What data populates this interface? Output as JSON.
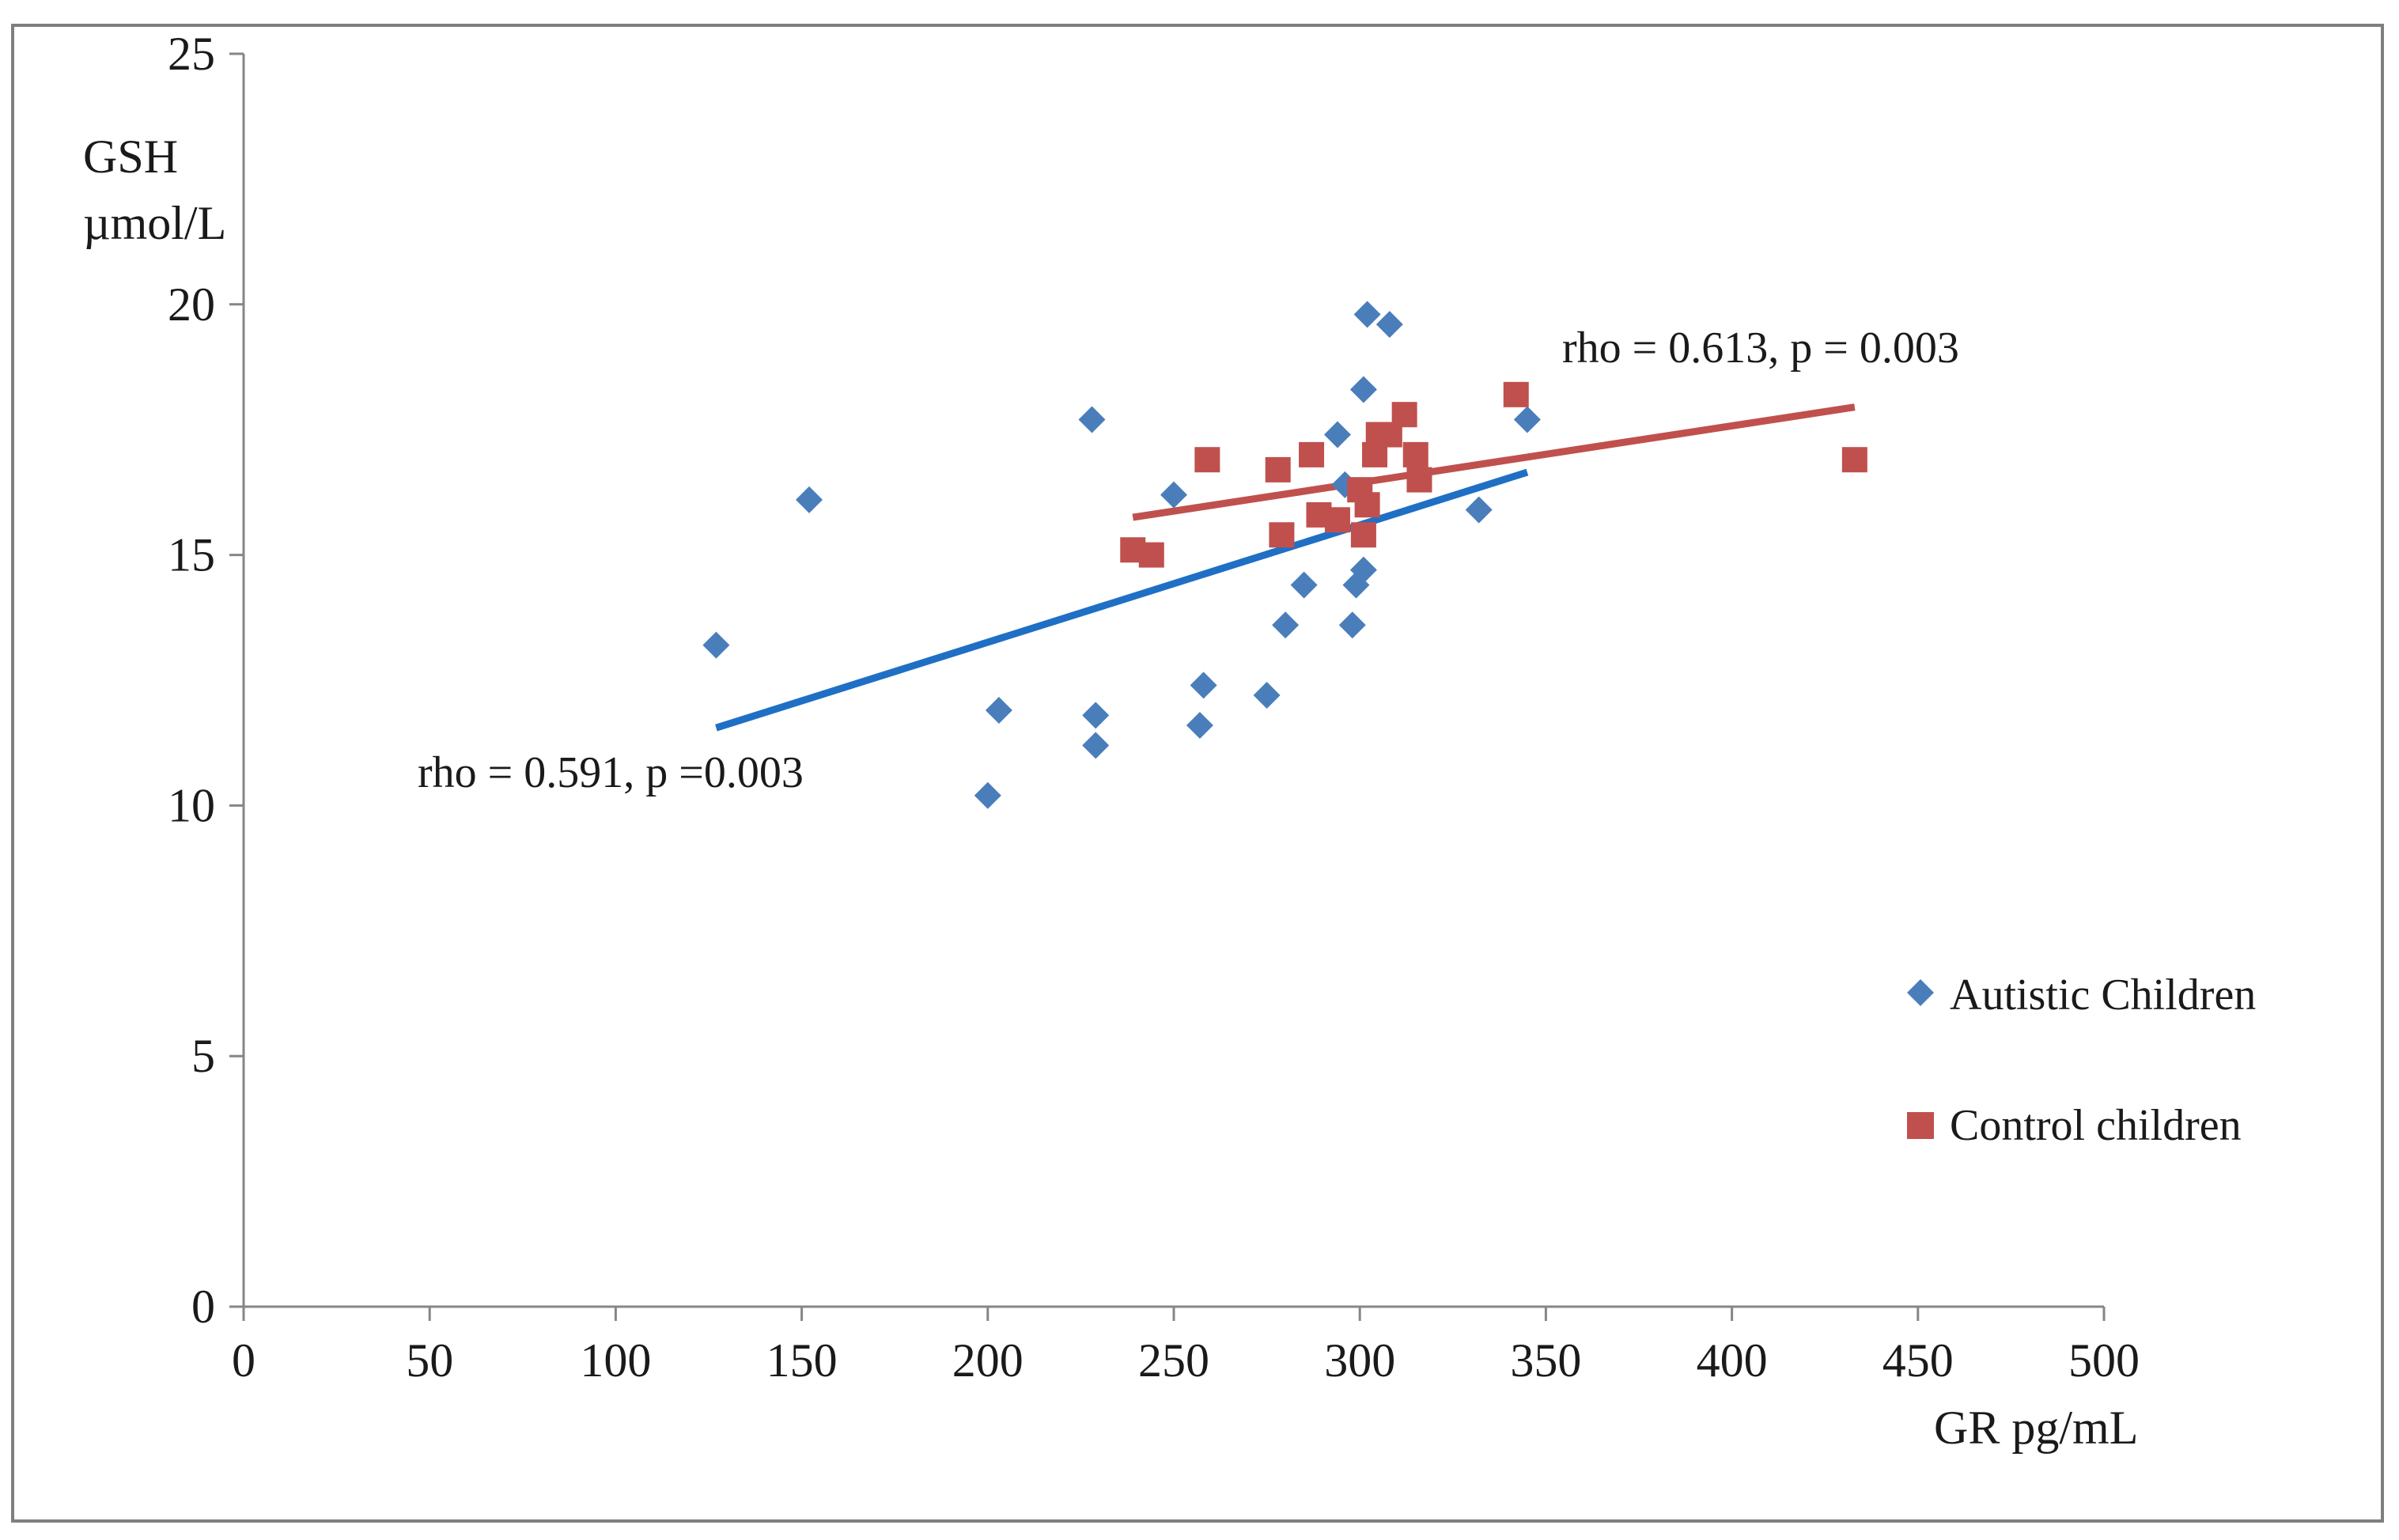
{
  "chart_data": {
    "type": "scatter",
    "title": "",
    "xlabel": "GR pg/mL",
    "ylabel_line1": "GSH",
    "ylabel_line2": "µmol/L",
    "xlim": [
      0,
      500
    ],
    "ylim": [
      0,
      25
    ],
    "x_ticks": [
      0,
      50,
      100,
      150,
      200,
      250,
      300,
      350,
      400,
      450,
      500
    ],
    "y_ticks": [
      0,
      5,
      10,
      15,
      20,
      25
    ],
    "grid": false,
    "legend_position": "right",
    "series": [
      {
        "name": "Autistic Children",
        "marker": "diamond",
        "color": "#4a7ebb",
        "points": [
          [
            127,
            13.2
          ],
          [
            152,
            16.1
          ],
          [
            200,
            10.2
          ],
          [
            203,
            11.9
          ],
          [
            228,
            17.7
          ],
          [
            229,
            11.8
          ],
          [
            229,
            11.2
          ],
          [
            250,
            16.2
          ],
          [
            257,
            11.6
          ],
          [
            258,
            12.4
          ],
          [
            275,
            12.2
          ],
          [
            280,
            13.6
          ],
          [
            285,
            14.4
          ],
          [
            294,
            17.4
          ],
          [
            296,
            16.4
          ],
          [
            298,
            13.6
          ],
          [
            299,
            14.4
          ],
          [
            301,
            14.7
          ],
          [
            301,
            18.3
          ],
          [
            302,
            19.8
          ],
          [
            308,
            19.6
          ],
          [
            332,
            15.9
          ],
          [
            345,
            17.7
          ]
        ],
        "trendline": {
          "x0": 127,
          "y0": 11.55,
          "x1": 345,
          "y1": 16.65,
          "color": "#1f6fc5"
        },
        "annotation": "rho = 0.591, p =0.003"
      },
      {
        "name": "Control children",
        "marker": "square",
        "color": "#c0504d",
        "points": [
          [
            239,
            15.1
          ],
          [
            244,
            15.0
          ],
          [
            259,
            16.9
          ],
          [
            278,
            16.7
          ],
          [
            279,
            15.4
          ],
          [
            287,
            17.0
          ],
          [
            289,
            15.8
          ],
          [
            294,
            15.7
          ],
          [
            300,
            16.3
          ],
          [
            301,
            15.4
          ],
          [
            302,
            16.0
          ],
          [
            304,
            17.0
          ],
          [
            305,
            17.4
          ],
          [
            308,
            17.4
          ],
          [
            312,
            17.8
          ],
          [
            315,
            17.0
          ],
          [
            316,
            16.5
          ],
          [
            342,
            18.2
          ],
          [
            433,
            16.9
          ]
        ],
        "trendline": {
          "x0": 239,
          "y0": 15.75,
          "x1": 433,
          "y1": 17.95,
          "color": "#c0504d"
        },
        "annotation": "rho = 0.613, p = 0.003"
      }
    ]
  }
}
